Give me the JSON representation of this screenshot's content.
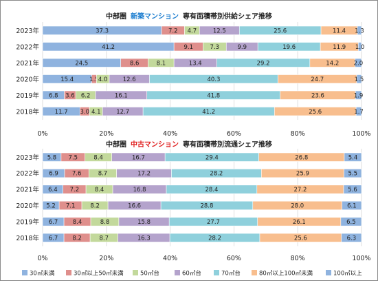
{
  "chart_data": [
    {
      "type": "bar",
      "orientation": "horizontal",
      "stacked": "percent",
      "title": {
        "prefix": "中部圏",
        "highlight": "新築マンション",
        "suffix": "専有面積帯別供給シェア推移",
        "highlight_color": "#1f7fd0"
      },
      "categories": [
        "2023年",
        "2022年",
        "2021年",
        "2020年",
        "2019年",
        "2018年"
      ],
      "xlim": [
        0,
        100
      ],
      "xticks": [
        "0%",
        "20%",
        "40%",
        "60%",
        "80%",
        "100%"
      ],
      "series": [
        {
          "name": "30㎡未満",
          "values": [
            37.3,
            41.2,
            24.5,
            15.4,
            6.8,
            11.7
          ]
        },
        {
          "name": "30㎡以上50㎡未満",
          "values": [
            7.2,
            9.1,
            8.6,
            1.5,
            3.6,
            3.0
          ]
        },
        {
          "name": "50㎡台",
          "values": [
            4.7,
            7.3,
            8.1,
            4.0,
            6.2,
            4.1
          ]
        },
        {
          "name": "60㎡台",
          "values": [
            12.5,
            9.9,
            13.4,
            12.6,
            16.1,
            12.7
          ]
        },
        {
          "name": "70㎡台",
          "values": [
            25.6,
            19.6,
            29.2,
            40.3,
            41.8,
            41.2
          ]
        },
        {
          "name": "80㎡以上100㎡未満",
          "values": [
            11.4,
            11.9,
            14.2,
            24.7,
            23.6,
            25.6
          ]
        },
        {
          "name": "100㎡以上",
          "values": [
            1.3,
            1.0,
            2.0,
            1.5,
            1.9,
            1.7
          ]
        }
      ]
    },
    {
      "type": "bar",
      "orientation": "horizontal",
      "stacked": "percent",
      "title": {
        "prefix": "中部圏",
        "highlight": "中古マンション",
        "suffix": "専有面積帯別流通シェア推移",
        "highlight_color": "#e02020"
      },
      "categories": [
        "2023年",
        "2022年",
        "2021年",
        "2020年",
        "2019年",
        "2018年"
      ],
      "xlim": [
        0,
        100
      ],
      "xticks": [
        "0%",
        "20%",
        "40%",
        "60%",
        "80%",
        "100%"
      ],
      "series": [
        {
          "name": "30㎡未満",
          "values": [
            5.8,
            6.9,
            6.4,
            5.2,
            6.7,
            6.7
          ]
        },
        {
          "name": "30㎡以上50㎡未満",
          "values": [
            7.5,
            7.6,
            7.2,
            7.1,
            8.4,
            8.2
          ]
        },
        {
          "name": "50㎡台",
          "values": [
            8.4,
            8.7,
            8.4,
            8.2,
            8.8,
            8.7
          ]
        },
        {
          "name": "60㎡台",
          "values": [
            16.7,
            17.2,
            16.8,
            16.6,
            15.8,
            16.3
          ]
        },
        {
          "name": "70㎡台",
          "values": [
            29.4,
            28.2,
            28.4,
            28.8,
            27.7,
            28.2
          ]
        },
        {
          "name": "80㎡以上100㎡未満",
          "values": [
            26.8,
            25.9,
            27.2,
            28.0,
            26.1,
            25.6
          ]
        },
        {
          "name": "100㎡以上",
          "values": [
            5.4,
            5.5,
            5.6,
            6.1,
            6.5,
            6.3
          ]
        }
      ]
    }
  ],
  "legend": {
    "placement": "bottom",
    "items": [
      "30㎡未満",
      "30㎡以上50㎡未満",
      "50㎡台",
      "60㎡台",
      "70㎡台",
      "80㎡以上100㎡未満",
      "100㎡以上"
    ]
  },
  "colors": [
    "#8fb3df",
    "#df8f8c",
    "#c3d99c",
    "#b4a3cc",
    "#8fd0dc",
    "#f8be8e",
    "#8fb3df"
  ]
}
